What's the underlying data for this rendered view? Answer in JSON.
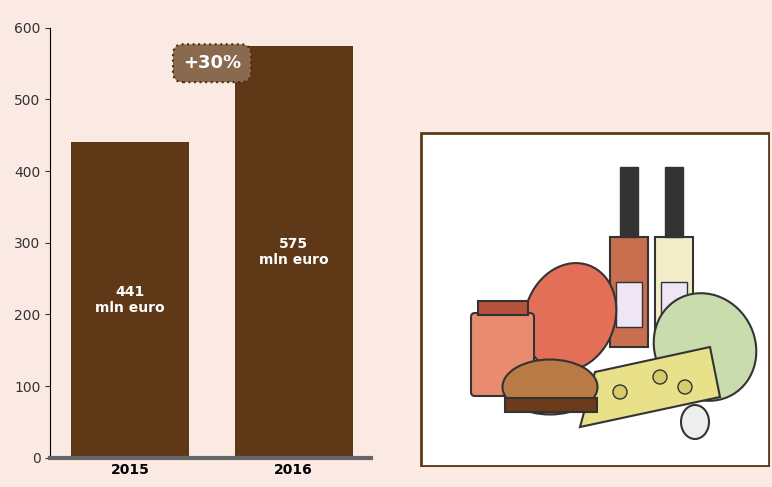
{
  "chart_data": {
    "type": "bar",
    "categories": [
      "2015",
      "2016"
    ],
    "values": [
      441,
      575
    ],
    "value_labels": [
      "441\nmln euro",
      "575\nmln euro"
    ],
    "data_labels": true,
    "color": "#5e3817",
    "ylim": [
      0,
      600
    ],
    "yticks": [
      0,
      100,
      200,
      300,
      400,
      500,
      600
    ],
    "annotations": [
      "+30%"
    ],
    "grid": false
  }
}
